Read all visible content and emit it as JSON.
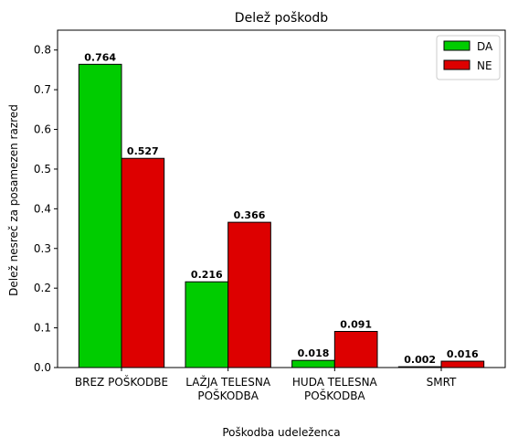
{
  "chart_data": {
    "type": "bar",
    "title": "Delež poškodb",
    "xlabel": "Poškodba udeleženca",
    "ylabel": "Delež nesreč za posamezen razred",
    "categories": [
      [
        "BREZ POŠKODBE"
      ],
      [
        "LAŽJA TELESNA",
        "POŠKODBA"
      ],
      [
        "HUDA TELESNA",
        "POŠKODBA"
      ],
      [
        "SMRT"
      ]
    ],
    "series": [
      {
        "name": "DA",
        "color": "#00cc00",
        "values": [
          0.764,
          0.216,
          0.018,
          0.002
        ],
        "labels": [
          "0.764",
          "0.216",
          "0.018",
          "0.002"
        ]
      },
      {
        "name": "NE",
        "color": "#dd0000",
        "values": [
          0.527,
          0.366,
          0.091,
          0.016
        ],
        "labels": [
          "0.527",
          "0.366",
          "0.091",
          "0.016"
        ]
      }
    ],
    "ylim": [
      0,
      0.85
    ],
    "yticks": [
      "0.0",
      "0.1",
      "0.2",
      "0.3",
      "0.4",
      "0.5",
      "0.6",
      "0.7",
      "0.8"
    ],
    "grid": false,
    "legend_position": "top-right"
  }
}
